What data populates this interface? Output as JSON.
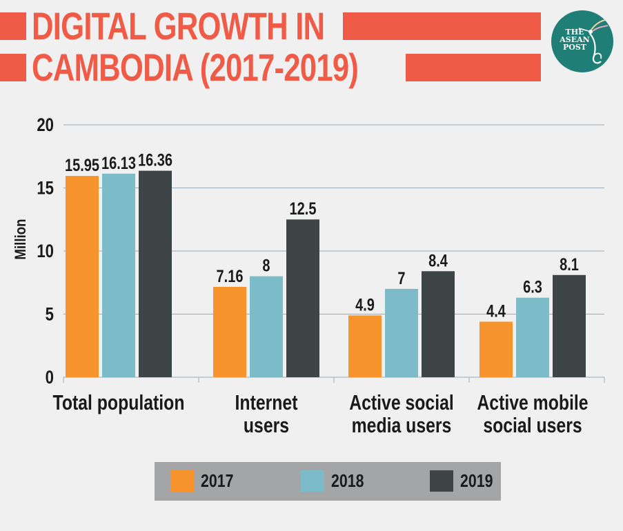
{
  "header": {
    "title_line1": "DIGITAL GROWTH IN",
    "title_line2": "CAMBODIA (2017-2019)",
    "brand_line1": "THE",
    "brand_line2": "ASEAN",
    "brand_line3": "POST",
    "accent_color": "#ef5b46",
    "logo_color": "#1f7e76"
  },
  "chart_data": {
    "type": "bar",
    "title": "",
    "xlabel": "",
    "ylabel": "Million",
    "ylim": [
      0,
      20
    ],
    "yticks": [
      0,
      5,
      10,
      15,
      20
    ],
    "grid": true,
    "legend_position": "bottom",
    "categories": [
      [
        "Total population"
      ],
      [
        "Internet",
        "users"
      ],
      [
        "Active social",
        "media users"
      ],
      [
        "Active mobile",
        "social users"
      ]
    ],
    "series": [
      {
        "name": "2017",
        "color": "#f7942d",
        "values": [
          15.95,
          7.16,
          4.9,
          4.4
        ],
        "labels": [
          "15.95",
          "7.16",
          "4.9",
          "4.4"
        ]
      },
      {
        "name": "2018",
        "color": "#7bbcc8",
        "values": [
          16.13,
          8,
          7,
          6.3
        ],
        "labels": [
          "16.13",
          "8",
          "7",
          "6.3"
        ]
      },
      {
        "name": "2019",
        "color": "#3e4547",
        "values": [
          16.36,
          12.5,
          8.4,
          8.1
        ],
        "labels": [
          "16.36",
          "12.5",
          "8.4",
          "8.1"
        ]
      }
    ]
  },
  "legend": {
    "items": [
      {
        "label": "2017",
        "color": "#f7942d"
      },
      {
        "label": "2018",
        "color": "#7bbcc8"
      },
      {
        "label": "2019",
        "color": "#3e4547"
      }
    ]
  }
}
